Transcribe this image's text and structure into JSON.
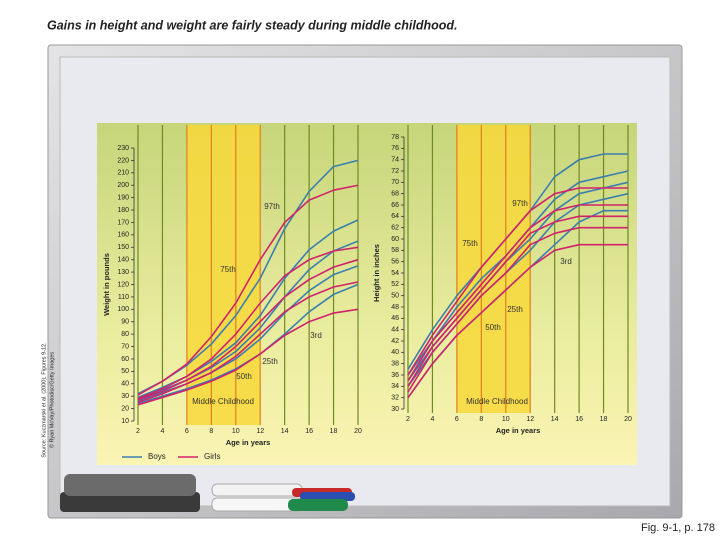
{
  "title": "Gains in height and weight are fairly steady during middle childhood.",
  "caption": "Fig. 9-1, p. 178",
  "source": [
    "Source: Kuczmarski et al. (2000), Figures 9-12.",
    "© Ryan McVay/Photodisc/Getty Images"
  ],
  "legend": [
    {
      "label": "Boys",
      "color": "#3b7fae"
    },
    {
      "label": "Girls",
      "color": "#d0236c"
    }
  ],
  "chart_data": [
    {
      "type": "line",
      "xlabel": "Age in years",
      "ylabel": "Weight in pounds",
      "x": [
        2,
        4,
        6,
        8,
        10,
        12,
        14,
        16,
        18,
        20
      ],
      "xlim": [
        2,
        20
      ],
      "xticks": [
        2,
        4,
        6,
        8,
        10,
        12,
        14,
        16,
        18,
        20
      ],
      "ylim": [
        10,
        230
      ],
      "yticks": [
        10,
        20,
        30,
        40,
        50,
        60,
        70,
        80,
        90,
        100,
        110,
        120,
        130,
        140,
        150,
        160,
        170,
        180,
        190,
        200,
        210,
        220,
        230
      ],
      "highlight_range": [
        6,
        12
      ],
      "series": [
        {
          "color": "#3b7fae",
          "values": [
            32,
            42,
            55,
            72,
            95,
            125,
            165,
            195,
            215,
            220
          ]
        },
        {
          "color": "#3b7fae",
          "values": [
            29,
            37,
            46,
            58,
            73,
            95,
            125,
            148,
            163,
            172
          ]
        },
        {
          "color": "#3b7fae",
          "values": [
            27,
            35,
            43,
            53,
            66,
            85,
            110,
            132,
            147,
            155
          ]
        },
        {
          "color": "#3b7fae",
          "values": [
            26,
            33,
            40,
            49,
            60,
            76,
            97,
            115,
            128,
            135
          ]
        },
        {
          "color": "#3b7fae",
          "values": [
            24,
            30,
            36,
            43,
            52,
            64,
            80,
            98,
            112,
            120
          ]
        },
        {
          "color": "#d0236c",
          "values": [
            31,
            42,
            56,
            78,
            105,
            140,
            170,
            188,
            196,
            200
          ]
        },
        {
          "color": "#d0236c",
          "values": [
            28,
            36,
            46,
            60,
            80,
            105,
            127,
            140,
            147,
            150
          ]
        },
        {
          "color": "#d0236c",
          "values": [
            27,
            34,
            43,
            54,
            70,
            90,
            110,
            124,
            134,
            140
          ]
        },
        {
          "color": "#d0236c",
          "values": [
            25,
            32,
            40,
            49,
            62,
            80,
            98,
            110,
            118,
            122
          ]
        },
        {
          "color": "#d0236c",
          "values": [
            23,
            29,
            35,
            42,
            51,
            64,
            79,
            90,
            97,
            100
          ]
        }
      ],
      "annotations": [
        "97th",
        "75th",
        "25th",
        "3rd",
        "50th",
        "Middle Childhood"
      ]
    },
    {
      "type": "line",
      "xlabel": "Age in years",
      "ylabel": "Height in inches",
      "x": [
        2,
        4,
        6,
        8,
        10,
        12,
        14,
        16,
        18,
        20
      ],
      "xlim": [
        2,
        20
      ],
      "xticks": [
        2,
        4,
        6,
        8,
        10,
        12,
        14,
        16,
        18,
        20
      ],
      "ylim": [
        30,
        78
      ],
      "yticks": [
        30,
        32,
        34,
        36,
        38,
        40,
        42,
        44,
        46,
        48,
        50,
        52,
        54,
        56,
        58,
        60,
        62,
        64,
        66,
        68,
        70,
        72,
        74,
        76,
        78
      ],
      "highlight_range": [
        6,
        12
      ],
      "series": [
        {
          "color": "#3b7fae",
          "values": [
            37,
            44,
            50,
            55,
            60,
            65,
            71,
            74,
            75,
            75
          ]
        },
        {
          "color": "#3b7fae",
          "values": [
            36,
            42,
            48,
            53,
            57,
            62,
            67,
            70,
            71,
            72
          ]
        },
        {
          "color": "#3b7fae",
          "values": [
            35,
            41,
            46,
            51,
            56,
            60,
            65,
            68,
            69,
            70
          ]
        },
        {
          "color": "#3b7fae",
          "values": [
            34,
            40,
            45,
            50,
            54,
            58,
            63,
            66,
            67,
            68
          ]
        },
        {
          "color": "#3b7fae",
          "values": [
            32,
            38,
            43,
            47,
            51,
            55,
            59,
            63,
            65,
            65
          ]
        },
        {
          "color": "#d0236c",
          "values": [
            36,
            43,
            49,
            55,
            60,
            65,
            68,
            69,
            69,
            69
          ]
        },
        {
          "color": "#d0236c",
          "values": [
            35,
            42,
            47,
            52,
            57,
            62,
            65,
            66,
            66,
            66
          ]
        },
        {
          "color": "#d0236c",
          "values": [
            34,
            41,
            46,
            51,
            56,
            61,
            63,
            64,
            64,
            64
          ]
        },
        {
          "color": "#d0236c",
          "values": [
            33,
            40,
            45,
            50,
            54,
            59,
            61,
            62,
            62,
            62
          ]
        },
        {
          "color": "#d0236c",
          "values": [
            32,
            38,
            43,
            47,
            51,
            55,
            58,
            59,
            59,
            59
          ]
        }
      ],
      "annotations": [
        "97th",
        "75th",
        "3rd",
        "25th",
        "50th",
        "Middle Childhood"
      ]
    }
  ]
}
